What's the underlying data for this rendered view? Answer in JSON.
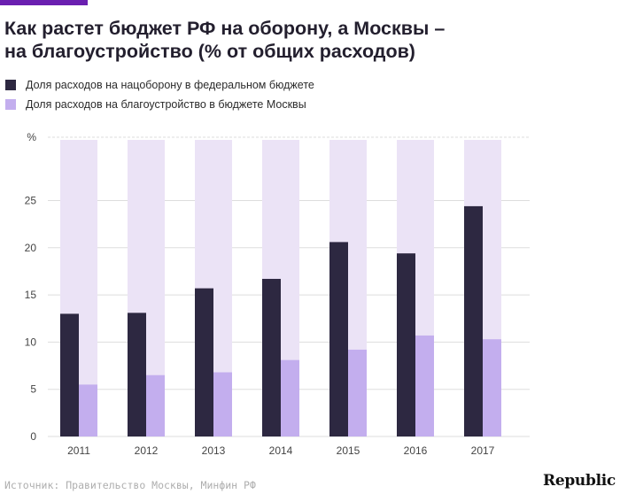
{
  "colors": {
    "accent": "#6a1fb0",
    "defense": "#2d2841",
    "improvement": "#c3aeee",
    "background_bar": "#ebe3f6",
    "grid": "#dddddd",
    "axis_text": "#444444"
  },
  "title": {
    "line1": "Как растет бюджет РФ на оборону, а Москвы –",
    "line2": "на благоустройство (% от общих расходов)"
  },
  "legend": [
    {
      "label": "Доля расходов на нацоборону в федеральном бюджете",
      "color": "#2d2841"
    },
    {
      "label": "Доля расходов на благоустройство в бюджете Москвы",
      "color": "#c3aeee"
    }
  ],
  "chart_data": {
    "type": "bar",
    "categories": [
      "2011",
      "2012",
      "2013",
      "2014",
      "2015",
      "2016",
      "2017"
    ],
    "series": [
      {
        "name": "Доля расходов на нацоборону в федеральном бюджете",
        "values": [
          13.0,
          13.1,
          15.7,
          16.7,
          20.6,
          19.4,
          24.4
        ]
      },
      {
        "name": "Доля расходов на благоустройство в бюджете Москвы",
        "values": [
          5.5,
          6.5,
          6.8,
          8.1,
          9.2,
          10.7,
          10.3
        ]
      }
    ],
    "yticks": [
      "0",
      "5",
      "10",
      "15",
      "20",
      "25",
      "%"
    ],
    "ylim": [
      0,
      31.5
    ],
    "unit": "%",
    "grid": true,
    "legend_position": "top-left"
  },
  "source": "Источник: Правительство Москвы, Минфин РФ",
  "logo": "Republic"
}
